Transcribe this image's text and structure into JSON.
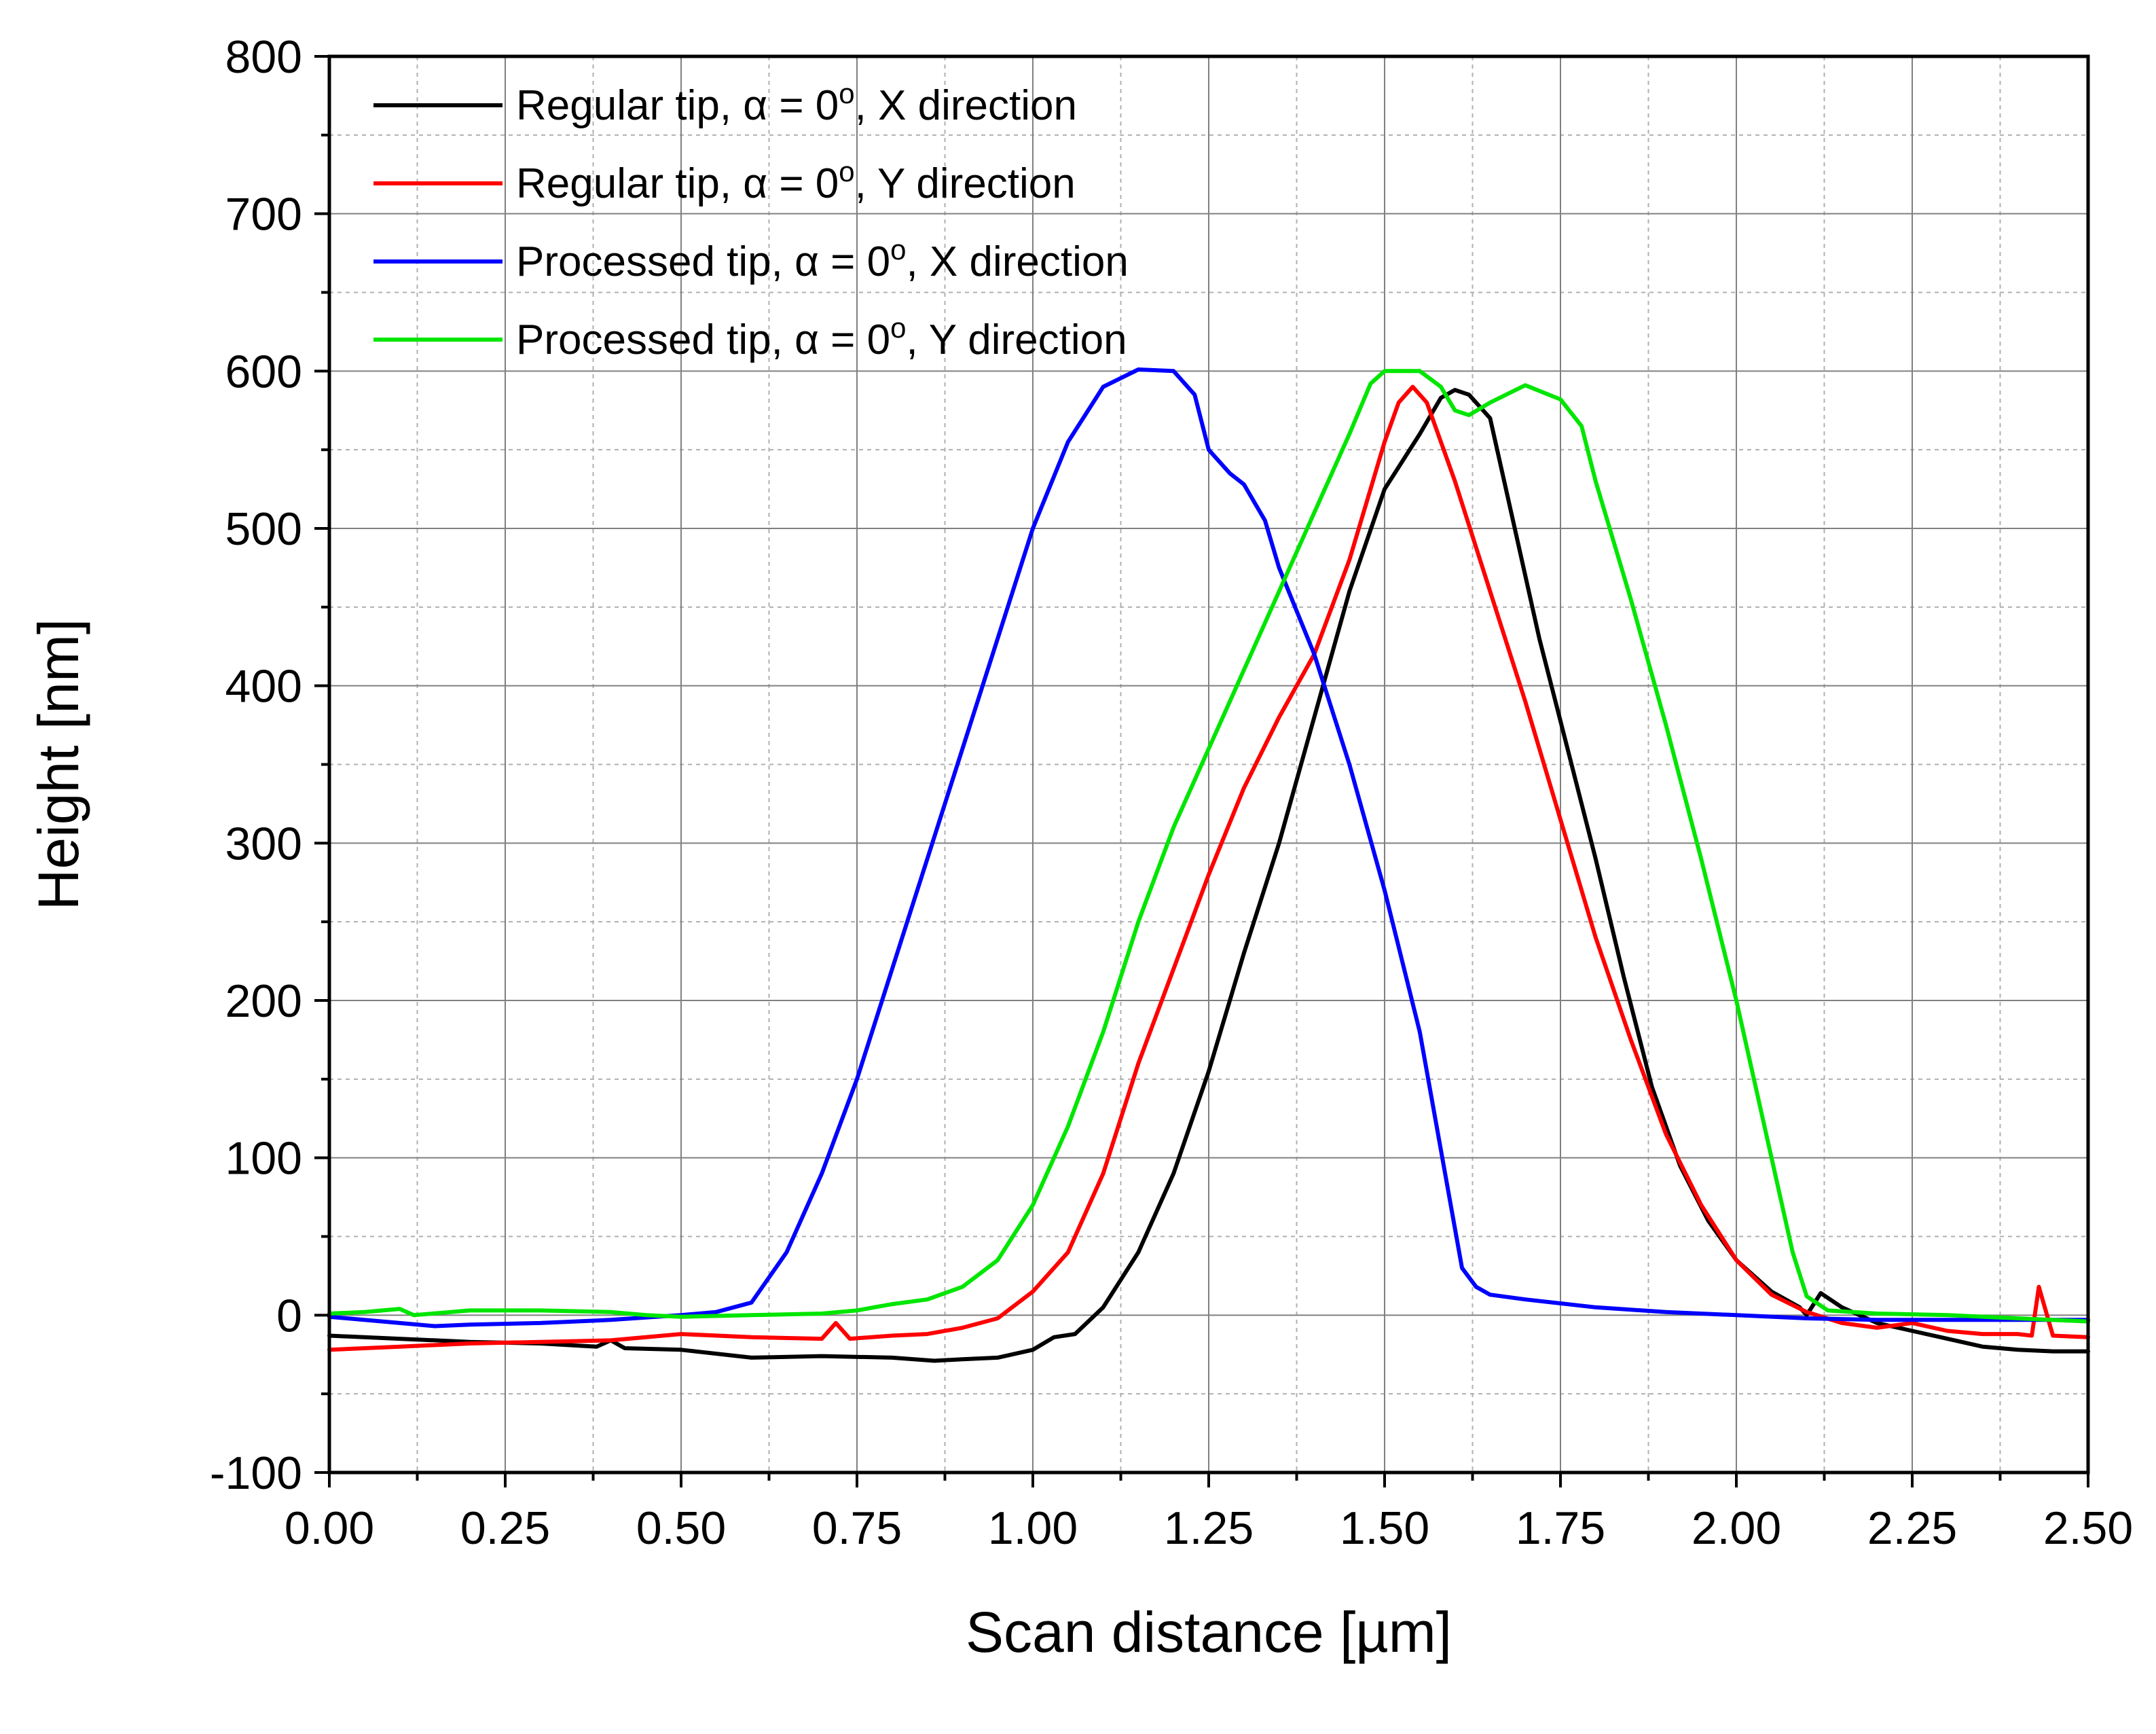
{
  "chart_data": {
    "type": "line",
    "title": "",
    "xlabel": "Scan distance [µm]",
    "ylabel": "Height [nm]",
    "xlim": [
      0,
      2.5
    ],
    "ylim": [
      -100,
      800
    ],
    "xticks": [
      0,
      0.25,
      0.5,
      0.75,
      1.0,
      1.25,
      1.5,
      1.75,
      2.0,
      2.25,
      2.5
    ],
    "xtick_labels": [
      "0.00",
      "0.25",
      "0.50",
      "0.75",
      "1.00",
      "1.25",
      "1.50",
      "1.75",
      "2.00",
      "2.25",
      "2.50"
    ],
    "yticks": [
      -100,
      0,
      100,
      200,
      300,
      400,
      500,
      600,
      700,
      800
    ],
    "ytick_labels": [
      "-100",
      "0",
      "100",
      "200",
      "300",
      "400",
      "500",
      "600",
      "700",
      "800"
    ],
    "grid": true,
    "legend_position": "top-left",
    "series": [
      {
        "name": "Regular tip, α = 0°, X direction",
        "label_pre": "Regular tip, ",
        "label_alpha": "α",
        "label_eq": " = 0",
        "label_sup": "o",
        "label_post": ", X direction",
        "color": "#000000",
        "points": [
          [
            0,
            -13
          ],
          [
            0.1,
            -15
          ],
          [
            0.2,
            -17
          ],
          [
            0.3,
            -18
          ],
          [
            0.38,
            -20
          ],
          [
            0.4,
            -16
          ],
          [
            0.42,
            -21
          ],
          [
            0.5,
            -22
          ],
          [
            0.6,
            -27
          ],
          [
            0.7,
            -26
          ],
          [
            0.8,
            -27
          ],
          [
            0.86,
            -29
          ],
          [
            0.9,
            -28
          ],
          [
            0.95,
            -27
          ],
          [
            1.0,
            -22
          ],
          [
            1.03,
            -14
          ],
          [
            1.06,
            -12
          ],
          [
            1.1,
            5
          ],
          [
            1.15,
            40
          ],
          [
            1.2,
            90
          ],
          [
            1.25,
            155
          ],
          [
            1.3,
            230
          ],
          [
            1.35,
            300
          ],
          [
            1.4,
            380
          ],
          [
            1.45,
            460
          ],
          [
            1.5,
            525
          ],
          [
            1.55,
            560
          ],
          [
            1.58,
            583
          ],
          [
            1.6,
            588
          ],
          [
            1.62,
            585
          ],
          [
            1.65,
            570
          ],
          [
            1.68,
            510
          ],
          [
            1.72,
            430
          ],
          [
            1.76,
            360
          ],
          [
            1.8,
            290
          ],
          [
            1.84,
            215
          ],
          [
            1.88,
            145
          ],
          [
            1.92,
            95
          ],
          [
            1.96,
            60
          ],
          [
            2.0,
            35
          ],
          [
            2.05,
            15
          ],
          [
            2.09,
            5
          ],
          [
            2.1,
            0
          ],
          [
            2.12,
            14
          ],
          [
            2.15,
            5
          ],
          [
            2.2,
            -5
          ],
          [
            2.25,
            -10
          ],
          [
            2.3,
            -15
          ],
          [
            2.35,
            -20
          ],
          [
            2.4,
            -22
          ],
          [
            2.45,
            -23
          ],
          [
            2.5,
            -23
          ]
        ]
      },
      {
        "name": "Regular tip, α = 0°, Y direction",
        "label_pre": "Regular tip, ",
        "label_alpha": "α",
        "label_eq": " = 0",
        "label_sup": "o",
        "label_post": ", Y direction",
        "color": "#ff0000",
        "points": [
          [
            0,
            -22
          ],
          [
            0.1,
            -20
          ],
          [
            0.2,
            -18
          ],
          [
            0.3,
            -17
          ],
          [
            0.4,
            -16
          ],
          [
            0.5,
            -12
          ],
          [
            0.6,
            -14
          ],
          [
            0.7,
            -15
          ],
          [
            0.72,
            -5
          ],
          [
            0.74,
            -15
          ],
          [
            0.8,
            -13
          ],
          [
            0.85,
            -12
          ],
          [
            0.9,
            -8
          ],
          [
            0.95,
            -2
          ],
          [
            1.0,
            15
          ],
          [
            1.05,
            40
          ],
          [
            1.1,
            90
          ],
          [
            1.15,
            160
          ],
          [
            1.2,
            220
          ],
          [
            1.25,
            280
          ],
          [
            1.3,
            335
          ],
          [
            1.35,
            380
          ],
          [
            1.4,
            420
          ],
          [
            1.45,
            480
          ],
          [
            1.48,
            525
          ],
          [
            1.5,
            555
          ],
          [
            1.52,
            580
          ],
          [
            1.54,
            590
          ],
          [
            1.56,
            580
          ],
          [
            1.6,
            530
          ],
          [
            1.65,
            460
          ],
          [
            1.7,
            390
          ],
          [
            1.75,
            315
          ],
          [
            1.8,
            240
          ],
          [
            1.85,
            175
          ],
          [
            1.9,
            115
          ],
          [
            1.95,
            70
          ],
          [
            2.0,
            35
          ],
          [
            2.05,
            13
          ],
          [
            2.1,
            2
          ],
          [
            2.15,
            -5
          ],
          [
            2.2,
            -8
          ],
          [
            2.25,
            -5
          ],
          [
            2.3,
            -10
          ],
          [
            2.35,
            -12
          ],
          [
            2.4,
            -12
          ],
          [
            2.42,
            -13
          ],
          [
            2.43,
            18
          ],
          [
            2.45,
            -13
          ],
          [
            2.5,
            -14
          ]
        ]
      },
      {
        "name": "Processed tip, α = 0°, X direction",
        "label_pre": "Processed tip, ",
        "label_alpha": "α",
        "label_eq": " = 0",
        "label_sup": "o",
        "label_post": ", X direction",
        "color": "#0000ff",
        "points": [
          [
            0,
            -1
          ],
          [
            0.1,
            -5
          ],
          [
            0.15,
            -7
          ],
          [
            0.2,
            -6
          ],
          [
            0.3,
            -5
          ],
          [
            0.4,
            -3
          ],
          [
            0.5,
            0
          ],
          [
            0.55,
            2
          ],
          [
            0.6,
            8
          ],
          [
            0.65,
            40
          ],
          [
            0.7,
            90
          ],
          [
            0.75,
            150
          ],
          [
            0.8,
            220
          ],
          [
            0.85,
            290
          ],
          [
            0.9,
            360
          ],
          [
            0.95,
            430
          ],
          [
            1.0,
            500
          ],
          [
            1.05,
            555
          ],
          [
            1.1,
            590
          ],
          [
            1.15,
            601
          ],
          [
            1.2,
            600
          ],
          [
            1.23,
            585
          ],
          [
            1.25,
            550
          ],
          [
            1.28,
            535
          ],
          [
            1.3,
            528
          ],
          [
            1.33,
            505
          ],
          [
            1.35,
            475
          ],
          [
            1.4,
            420
          ],
          [
            1.45,
            350
          ],
          [
            1.5,
            270
          ],
          [
            1.55,
            180
          ],
          [
            1.58,
            105
          ],
          [
            1.61,
            30
          ],
          [
            1.63,
            18
          ],
          [
            1.65,
            13
          ],
          [
            1.7,
            10
          ],
          [
            1.8,
            5
          ],
          [
            1.9,
            2
          ],
          [
            2.0,
            0
          ],
          [
            2.1,
            -2
          ],
          [
            2.2,
            -3
          ],
          [
            2.3,
            -3
          ],
          [
            2.4,
            -3
          ],
          [
            2.5,
            -3
          ]
        ]
      },
      {
        "name": "Processed tip, α = 0°, Y direction",
        "label_pre": "Processed tip, ",
        "label_alpha": "α",
        "label_eq": " = 0",
        "label_sup": "o",
        "label_post": ", Y direction",
        "color": "#00e600",
        "points": [
          [
            0,
            1
          ],
          [
            0.05,
            2
          ],
          [
            0.1,
            4
          ],
          [
            0.12,
            0
          ],
          [
            0.2,
            3
          ],
          [
            0.3,
            3
          ],
          [
            0.4,
            2
          ],
          [
            0.45,
            0
          ],
          [
            0.5,
            -1
          ],
          [
            0.6,
            0
          ],
          [
            0.7,
            1
          ],
          [
            0.75,
            3
          ],
          [
            0.8,
            7
          ],
          [
            0.85,
            10
          ],
          [
            0.9,
            18
          ],
          [
            0.95,
            35
          ],
          [
            1.0,
            70
          ],
          [
            1.05,
            120
          ],
          [
            1.1,
            180
          ],
          [
            1.15,
            250
          ],
          [
            1.2,
            310
          ],
          [
            1.25,
            360
          ],
          [
            1.3,
            410
          ],
          [
            1.35,
            460
          ],
          [
            1.4,
            510
          ],
          [
            1.45,
            560
          ],
          [
            1.48,
            592
          ],
          [
            1.5,
            600
          ],
          [
            1.55,
            600
          ],
          [
            1.58,
            590
          ],
          [
            1.6,
            575
          ],
          [
            1.62,
            572
          ],
          [
            1.65,
            580
          ],
          [
            1.7,
            591
          ],
          [
            1.75,
            582
          ],
          [
            1.78,
            565
          ],
          [
            1.8,
            530
          ],
          [
            1.85,
            455
          ],
          [
            1.9,
            375
          ],
          [
            1.95,
            290
          ],
          [
            2.0,
            200
          ],
          [
            2.05,
            100
          ],
          [
            2.08,
            40
          ],
          [
            2.1,
            12
          ],
          [
            2.13,
            3
          ],
          [
            2.2,
            1
          ],
          [
            2.3,
            0
          ],
          [
            2.4,
            -2
          ],
          [
            2.5,
            -4
          ]
        ]
      }
    ]
  }
}
